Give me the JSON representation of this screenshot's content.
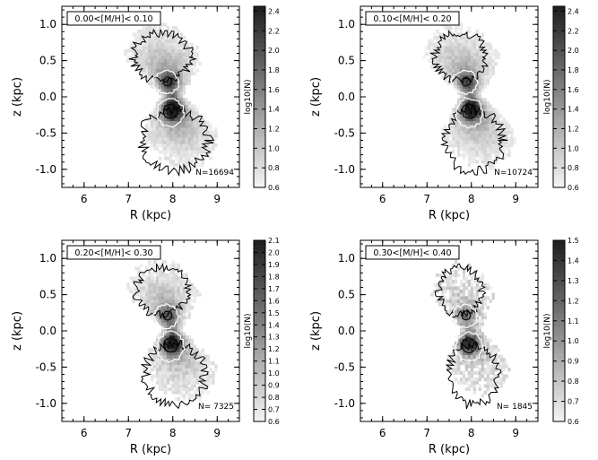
{
  "chart_data": [
    {
      "type": "heatmap",
      "xlabel": "R (kpc)",
      "ylabel": "z (kpc)",
      "xlim": [
        5.5,
        9.5
      ],
      "ylim": [
        -1.25,
        1.25
      ],
      "xticks": [
        6,
        7,
        8,
        9
      ],
      "yticks": [
        -1.0,
        -0.5,
        0.0,
        0.5,
        1.0
      ],
      "metallicity_label": "0.00<[M/H]< 0.10",
      "n_label": "N=16694",
      "colorbar_label": "log10(N)",
      "colorbar_range": [
        0.6,
        2.45
      ],
      "colorbar_ticks": [
        "0.6",
        "0.8",
        "1.0",
        "1.2",
        "1.4",
        "1.6",
        "1.8",
        "2.0",
        "2.2",
        "2.4"
      ],
      "density_peaks": [
        {
          "R": 7.95,
          "z": -0.2,
          "log10N": 2.4
        },
        {
          "R": 7.9,
          "z": 0.2,
          "log10N": 2.1
        }
      ]
    },
    {
      "type": "heatmap",
      "xlabel": "R (kpc)",
      "ylabel": "z (kpc)",
      "xlim": [
        5.5,
        9.5
      ],
      "ylim": [
        -1.25,
        1.25
      ],
      "xticks": [
        6,
        7,
        8,
        9
      ],
      "yticks": [
        -1.0,
        -0.5,
        0.0,
        0.5,
        1.0
      ],
      "metallicity_label": "0.10<[M/H]< 0.20",
      "n_label": "N=10724",
      "colorbar_label": "log10(N)",
      "colorbar_range": [
        0.6,
        2.45
      ],
      "colorbar_ticks": [
        "0.6",
        "0.8",
        "1.0",
        "1.2",
        "1.4",
        "1.6",
        "1.8",
        "2.0",
        "2.2",
        "2.4"
      ],
      "density_peaks": [
        {
          "R": 7.95,
          "z": -0.2,
          "log10N": 2.3
        },
        {
          "R": 7.9,
          "z": 0.2,
          "log10N": 1.9
        }
      ]
    },
    {
      "type": "heatmap",
      "xlabel": "R (kpc)",
      "ylabel": "z (kpc)",
      "xlim": [
        5.5,
        9.5
      ],
      "ylim": [
        -1.25,
        1.25
      ],
      "xticks": [
        6,
        7,
        8,
        9
      ],
      "yticks": [
        -1.0,
        -0.5,
        0.0,
        0.5,
        1.0
      ],
      "metallicity_label": "0.20<[M/H]< 0.30",
      "n_label": "N= 7325",
      "colorbar_label": "log10(N)",
      "colorbar_range": [
        0.6,
        2.1
      ],
      "colorbar_ticks": [
        "0.6",
        "0.7",
        "0.8",
        "0.9",
        "1.0",
        "1.1",
        "1.2",
        "1.3",
        "1.4",
        "1.5",
        "1.6",
        "1.7",
        "1.8",
        "1.9",
        "2.0",
        "2.1"
      ],
      "density_peaks": [
        {
          "R": 7.95,
          "z": -0.2,
          "log10N": 2.0
        },
        {
          "R": 7.85,
          "z": 0.2,
          "log10N": 1.7
        }
      ]
    },
    {
      "type": "heatmap",
      "xlabel": "R (kpc)",
      "ylabel": "z (kpc)",
      "xlim": [
        5.5,
        9.5
      ],
      "ylim": [
        -1.25,
        1.25
      ],
      "xticks": [
        6,
        7,
        8,
        9
      ],
      "yticks": [
        -1.0,
        -0.5,
        0.0,
        0.5,
        1.0
      ],
      "metallicity_label": "0.30<[M/H]< 0.40",
      "n_label": "N= 1845",
      "colorbar_label": "log10(N)",
      "colorbar_range": [
        0.6,
        1.5
      ],
      "colorbar_ticks": [
        "0.6",
        "0.7",
        "0.8",
        "0.9",
        "1.0",
        "1.1",
        "1.2",
        "1.3",
        "1.4",
        "1.5"
      ],
      "density_peaks": [
        {
          "R": 7.9,
          "z": -0.2,
          "log10N": 1.45
        },
        {
          "R": 7.85,
          "z": 0.2,
          "log10N": 1.2
        }
      ]
    }
  ]
}
